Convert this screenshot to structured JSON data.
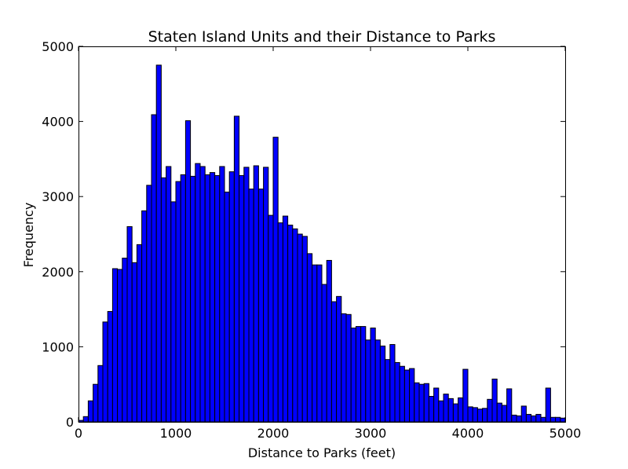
{
  "chart_data": {
    "type": "bar",
    "title": "Staten Island Units and their Distance to Parks",
    "xlabel": "Distance to Parks (feet)",
    "ylabel": "Frequency",
    "xlim": [
      0,
      5000
    ],
    "ylim": [
      0,
      5000
    ],
    "bin_width": 50,
    "bar_color": "#0000ff",
    "edge_color": "#000000",
    "grid": false,
    "xticks": [
      0,
      1000,
      2000,
      3000,
      4000,
      5000
    ],
    "xtick_labels": [
      "0",
      "1000",
      "2000",
      "3000",
      "4000",
      "5000"
    ],
    "yticks": [
      0,
      1000,
      2000,
      3000,
      4000,
      5000
    ],
    "ytick_labels": [
      "0",
      "1000",
      "2000",
      "3000",
      "4000",
      "5000"
    ],
    "values": [
      20,
      70,
      280,
      500,
      750,
      1330,
      1470,
      2040,
      2030,
      2180,
      2600,
      2120,
      2360,
      2810,
      3150,
      4090,
      4750,
      3250,
      3400,
      2930,
      3200,
      3290,
      4010,
      3270,
      3440,
      3400,
      3290,
      3320,
      3280,
      3400,
      3060,
      3330,
      4070,
      3280,
      3390,
      3100,
      3410,
      3100,
      3390,
      2750,
      3790,
      2650,
      2740,
      2620,
      2570,
      2500,
      2470,
      2240,
      2090,
      2090,
      1830,
      2150,
      1600,
      1670,
      1440,
      1430,
      1250,
      1270,
      1270,
      1090,
      1250,
      1090,
      1010,
      830,
      1030,
      790,
      740,
      690,
      710,
      520,
      500,
      510,
      340,
      450,
      280,
      370,
      310,
      240,
      320,
      700,
      200,
      190,
      170,
      180,
      300,
      570,
      250,
      220,
      440,
      90,
      80,
      210,
      100,
      80,
      100,
      60,
      450,
      60,
      60,
      50
    ]
  }
}
